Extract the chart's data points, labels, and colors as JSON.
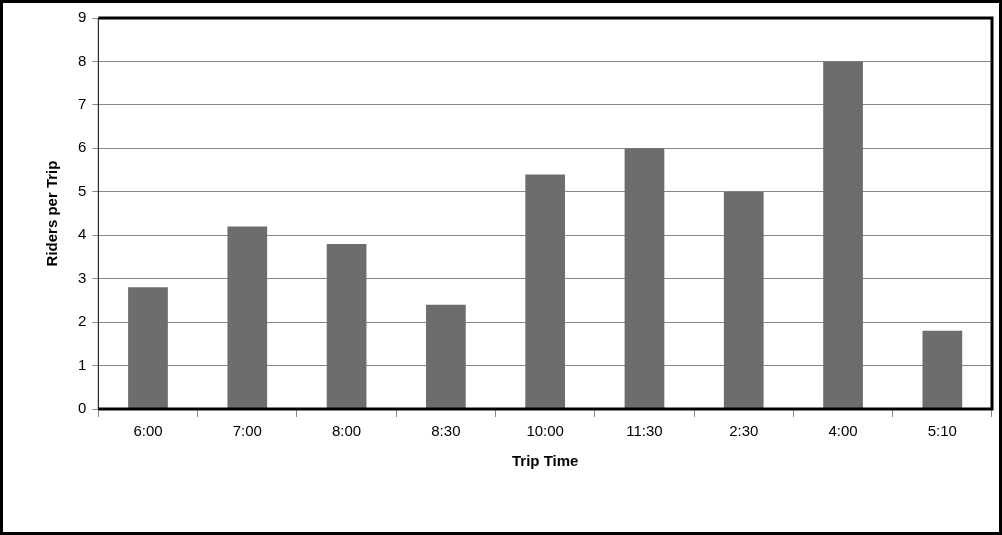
{
  "chart_data": {
    "type": "bar",
    "xlabel": "Trip Time",
    "ylabel": "Riders per Trip",
    "categories": [
      "6:00",
      "7:00",
      "8:00",
      "8:30",
      "10:00",
      "11:30",
      "2:30",
      "4:00",
      "5:10"
    ],
    "values": [
      2.8,
      4.2,
      3.8,
      2.4,
      5.4,
      6.0,
      5.0,
      8.0,
      1.8
    ],
    "color": "#6d6d6d",
    "ylim": [
      0,
      9
    ],
    "yticks": [
      0,
      1,
      2,
      3,
      4,
      5,
      6,
      7,
      8,
      9
    ],
    "grid": "y",
    "legend": false
  }
}
